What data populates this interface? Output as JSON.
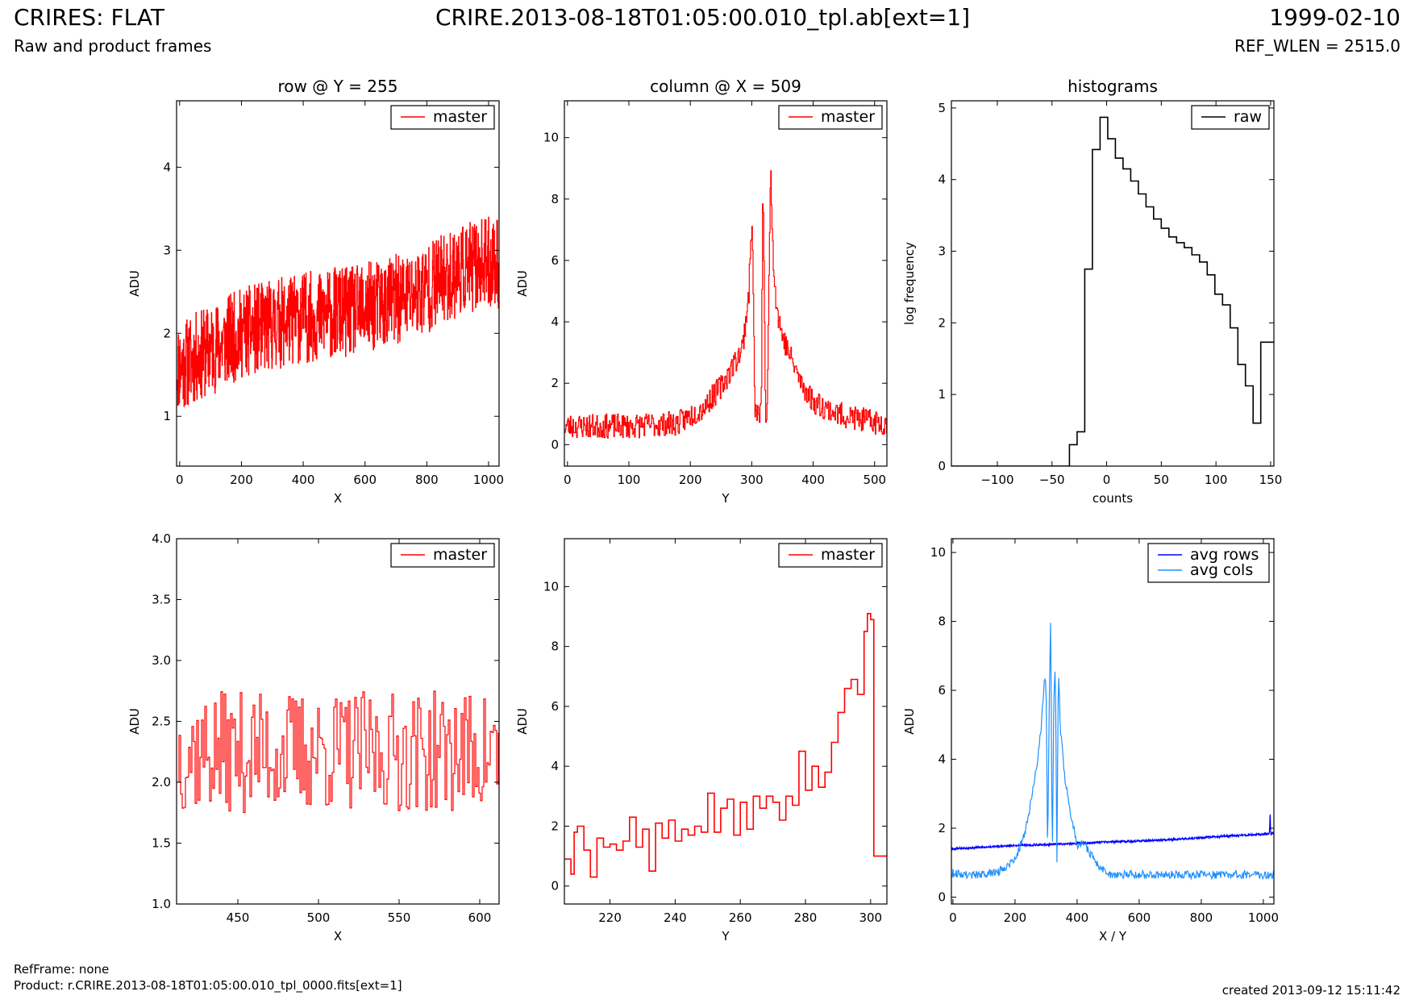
{
  "header": {
    "title": "CRIRES: FLAT",
    "subtitle": "Raw and product frames",
    "file": "CRIRE.2013-08-18T01:05:00.010_tpl.ab[ext=1]",
    "date": "1999-02-10",
    "ref_wlen": "REF_WLEN = 2515.0"
  },
  "footer": {
    "refframe": "RefFrame: none",
    "product": "Product: r.CRIRE.2013-08-18T01:05:00.010_tpl_0000.fits[ext=1]",
    "created": "created 2013-09-12 15:11:42"
  },
  "colors": {
    "master": "#ff0000",
    "raw": "#000000",
    "avg_rows": "#0000ff",
    "avg_cols": "#1e90ff"
  },
  "chart_data": [
    {
      "type": "line",
      "title": "row @ Y = 255",
      "xlabel": "X",
      "ylabel": "ADU",
      "xlim": [
        -10,
        1034
      ],
      "ylim": [
        0.4,
        4.8
      ],
      "xticks": [
        0,
        200,
        400,
        600,
        800,
        1000
      ],
      "yticks": [
        1,
        2,
        3,
        4
      ],
      "legend": {
        "placement": "top-right",
        "entries": [
          "master"
        ]
      },
      "series": [
        {
          "name": "master",
          "color": "#ff0000",
          "step": true,
          "x": [
            0,
            50,
            100,
            150,
            200,
            250,
            300,
            350,
            400,
            450,
            500,
            550,
            600,
            650,
            700,
            750,
            800,
            850,
            900,
            950,
            1000,
            1024
          ],
          "y": [
            1.6,
            1.7,
            1.8,
            1.9,
            2.0,
            2.05,
            2.1,
            2.15,
            2.2,
            2.2,
            2.25,
            2.25,
            2.3,
            2.35,
            2.4,
            2.45,
            2.55,
            2.65,
            2.75,
            2.8,
            2.85,
            2.85
          ],
          "noise": 0.55,
          "seed": 11,
          "points": 1024
        }
      ]
    },
    {
      "type": "line",
      "title": "column @ X = 509",
      "xlabel": "Y",
      "ylabel": "ADU",
      "xlim": [
        -5,
        520
      ],
      "ylim": [
        -0.7,
        11.2
      ],
      "xticks": [
        0,
        100,
        200,
        300,
        400,
        500
      ],
      "yticks": [
        0,
        2,
        4,
        6,
        8,
        10
      ],
      "legend": {
        "placement": "top-right",
        "entries": [
          "master"
        ]
      },
      "series": [
        {
          "name": "master",
          "color": "#ff0000",
          "step": true,
          "x": [
            0,
            100,
            180,
            220,
            250,
            270,
            285,
            295,
            300,
            305,
            315,
            318,
            322,
            325,
            330,
            335,
            340,
            350,
            360,
            380,
            400,
            440,
            480,
            512
          ],
          "y": [
            0.6,
            0.6,
            0.7,
            1.2,
            1.9,
            2.6,
            3.2,
            5.0,
            7.5,
            1.0,
            1.0,
            8.9,
            1.0,
            1.0,
            9.1,
            6.0,
            4.5,
            3.5,
            3.0,
            2.0,
            1.4,
            1.0,
            0.8,
            0.7
          ],
          "noise": 0.4,
          "seed": 23,
          "points": 512
        }
      ]
    },
    {
      "type": "line",
      "title": "histograms",
      "xlabel": "counts",
      "ylabel": "log frequency",
      "xlim": [
        -142,
        153
      ],
      "ylim": [
        0,
        5.1
      ],
      "xticks": [
        -100,
        -50,
        0,
        50,
        100,
        150
      ],
      "yticks": [
        0,
        1,
        2,
        3,
        4,
        5
      ],
      "legend": {
        "placement": "top-right",
        "entries": [
          "raw"
        ]
      },
      "series": [
        {
          "name": "raw",
          "color": "#000000",
          "step": true,
          "x": [
            -142,
            -34,
            -27,
            -20,
            -13,
            -6,
            1,
            8,
            15,
            22,
            29,
            36,
            43,
            50,
            57,
            64,
            71,
            78,
            85,
            92,
            99,
            106,
            113,
            120,
            127,
            134,
            141,
            148,
            153
          ],
          "y": [
            0,
            0.3,
            0.48,
            2.75,
            4.42,
            4.87,
            4.57,
            4.3,
            4.15,
            3.98,
            3.8,
            3.62,
            3.45,
            3.32,
            3.2,
            3.12,
            3.05,
            2.95,
            2.85,
            2.67,
            2.4,
            2.25,
            1.93,
            1.42,
            1.12,
            0.6,
            1.73,
            1.73,
            1.73
          ]
        }
      ]
    },
    {
      "type": "line",
      "title": "",
      "xlabel": "X",
      "ylabel": "ADU",
      "xlim": [
        412,
        612
      ],
      "ylim": [
        1.0,
        4.0
      ],
      "xticks": [
        450,
        500,
        550,
        600
      ],
      "yticks": [
        1.0,
        1.5,
        2.0,
        2.5,
        3.0,
        3.5,
        4.0
      ],
      "legend": {
        "placement": "top-right",
        "entries": [
          "master"
        ]
      },
      "series": [
        {
          "name": "master",
          "color": "#ff0000",
          "step": true,
          "x": [
            412,
            612
          ],
          "y": [
            2.25,
            2.25
          ],
          "noise": 0.5,
          "seed": 37,
          "points": 200
        }
      ]
    },
    {
      "type": "line",
      "title": "",
      "xlabel": "Y",
      "ylabel": "ADU",
      "xlim": [
        206,
        305
      ],
      "ylim": [
        -0.6,
        11.6
      ],
      "xticks": [
        220,
        240,
        260,
        280,
        300
      ],
      "yticks": [
        0,
        2,
        4,
        6,
        8,
        10
      ],
      "legend": {
        "placement": "top-right",
        "entries": [
          "master"
        ]
      },
      "series": [
        {
          "name": "master",
          "color": "#ff0000",
          "step": true,
          "x": [
            206,
            208,
            209,
            210,
            212,
            214,
            216,
            218,
            220,
            222,
            224,
            226,
            228,
            230,
            232,
            234,
            236,
            238,
            240,
            242,
            244,
            246,
            248,
            250,
            252,
            254,
            256,
            258,
            260,
            262,
            264,
            266,
            268,
            270,
            272,
            274,
            276,
            278,
            280,
            282,
            284,
            286,
            288,
            290,
            292,
            294,
            296,
            298,
            299,
            300,
            301,
            302,
            305
          ],
          "y": [
            0.9,
            0.4,
            1.8,
            2.0,
            1.2,
            0.3,
            1.6,
            1.3,
            1.4,
            1.2,
            1.5,
            2.3,
            1.3,
            1.9,
            0.5,
            2.1,
            1.6,
            2.2,
            1.5,
            1.9,
            1.7,
            2.0,
            1.8,
            3.1,
            1.8,
            2.6,
            2.9,
            1.7,
            2.8,
            1.9,
            3.0,
            2.6,
            3.0,
            2.8,
            2.2,
            3.0,
            2.7,
            4.5,
            3.2,
            4.0,
            3.3,
            3.8,
            4.8,
            5.8,
            6.6,
            6.9,
            6.4,
            8.5,
            9.1,
            8.9,
            1.0,
            1.0,
            1.0
          ]
        }
      ]
    },
    {
      "type": "line",
      "title": "",
      "xlabel": "X / Y",
      "ylabel": "ADU",
      "xlim": [
        -5,
        1034
      ],
      "ylim": [
        -0.2,
        10.4
      ],
      "xticks": [
        0,
        200,
        400,
        600,
        800,
        1000
      ],
      "yticks": [
        0,
        2,
        4,
        6,
        8,
        10
      ],
      "legend": {
        "placement": "top-right",
        "entries": [
          "avg rows",
          "avg cols"
        ]
      },
      "series": [
        {
          "name": "avg rows",
          "color": "#0000ff",
          "step": false,
          "x": [
            0,
            100,
            200,
            300,
            400,
            500,
            600,
            700,
            800,
            900,
            1000,
            1020,
            1022,
            1023,
            1024
          ],
          "y": [
            1.4,
            1.45,
            1.5,
            1.52,
            1.56,
            1.6,
            1.63,
            1.67,
            1.72,
            1.78,
            1.82,
            1.85,
            2.6,
            1.9,
            1.85
          ],
          "noise": 0.03,
          "seed": 5,
          "points": 1024
        },
        {
          "name": "avg cols",
          "color": "#1e90ff",
          "step": false,
          "x": [
            0,
            50,
            100,
            150,
            200,
            230,
            250,
            270,
            285,
            295,
            300,
            305,
            310,
            315,
            320,
            325,
            330,
            335,
            340,
            345,
            350,
            360,
            380,
            400,
            420,
            440,
            460,
            480,
            510
          ],
          "y": [
            0.7,
            0.65,
            0.65,
            0.75,
            1.1,
            1.8,
            2.7,
            3.8,
            5.0,
            6.5,
            6.2,
            1.1,
            5.6,
            8.1,
            1.0,
            5.8,
            6.7,
            1.0,
            6.8,
            5.0,
            4.6,
            3.5,
            2.4,
            1.5,
            1.6,
            1.3,
            1.0,
            0.8,
            0.65
          ],
          "noise": 0.12,
          "seed": 9,
          "points": 512
        }
      ]
    }
  ]
}
